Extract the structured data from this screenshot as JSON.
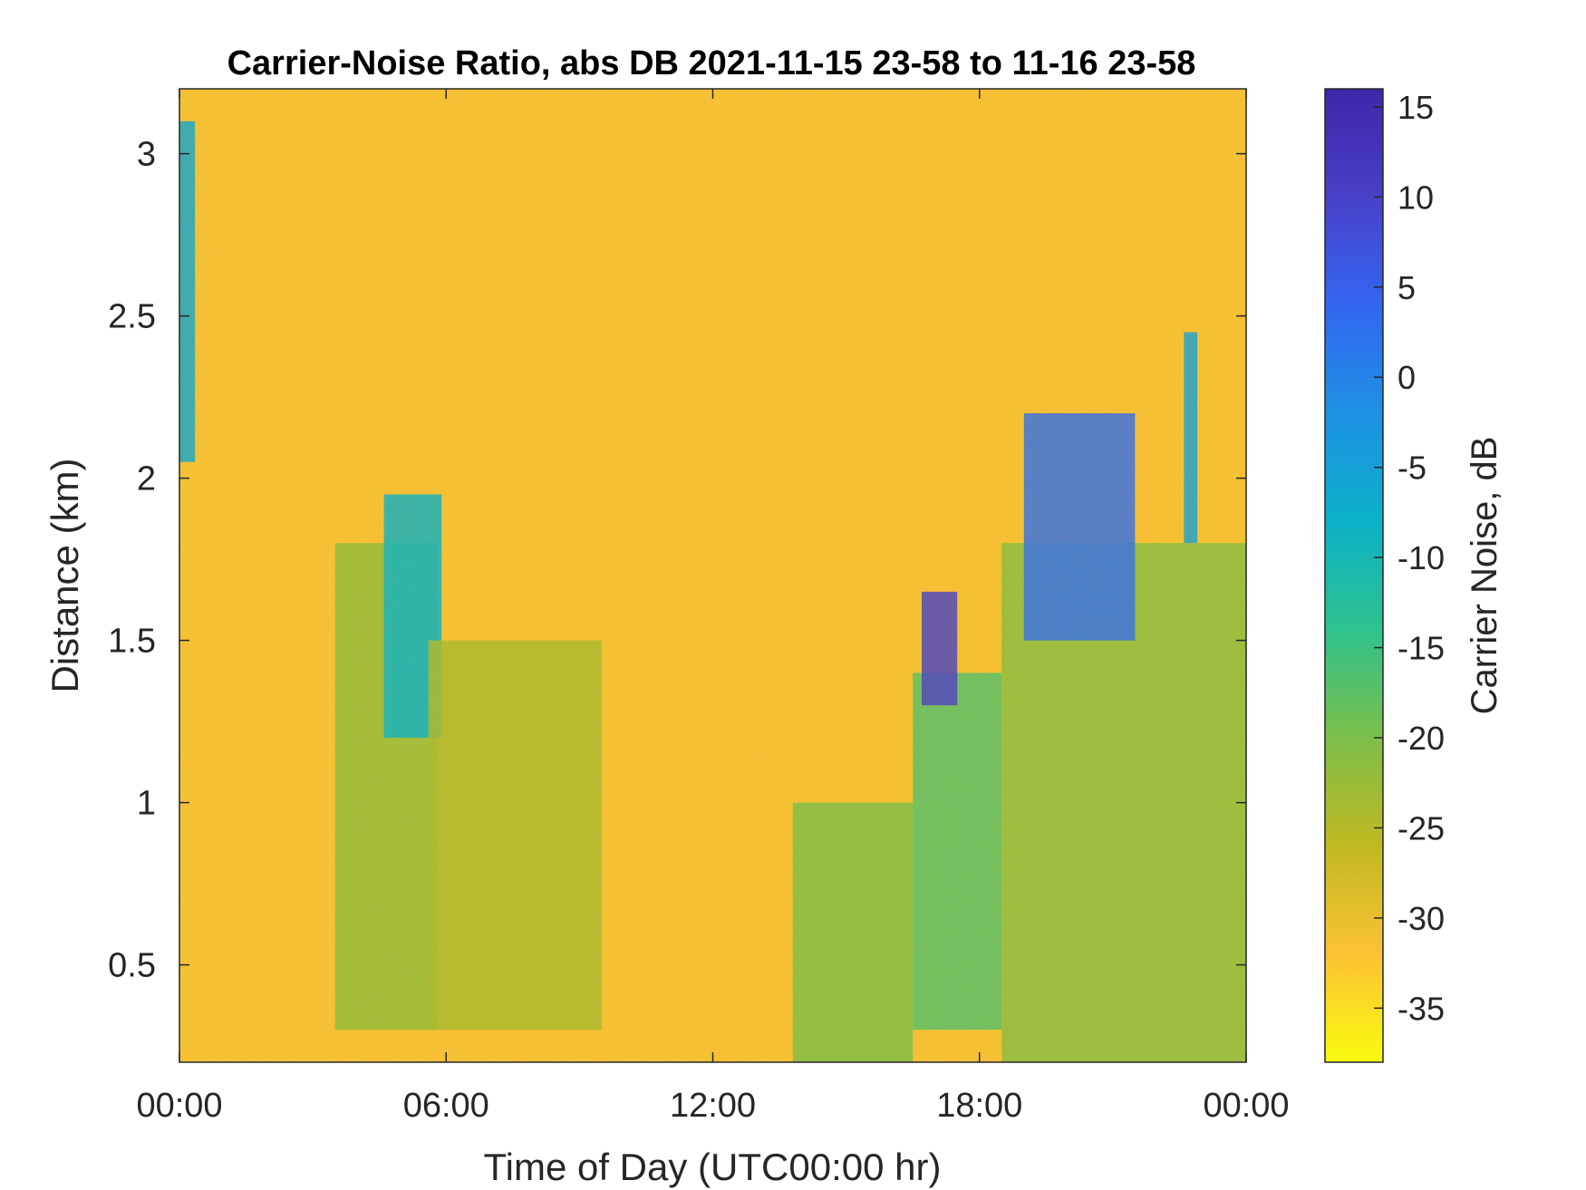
{
  "chart_data": {
    "type": "heatmap",
    "title": "Carrier-Noise Ratio, abs DB 2021-11-15 23-58 to 11-16 23-58",
    "xlabel": "Time of Day (UTC00:00 hr)",
    "ylabel": "Distance (km)",
    "xlim": [
      0,
      24
    ],
    "ylim": [
      0.2,
      3.2
    ],
    "x_ticks": [
      0,
      6,
      12,
      18,
      24
    ],
    "x_tick_labels": [
      "00:00",
      "06:00",
      "12:00",
      "18:00",
      "00:00"
    ],
    "y_ticks": [
      0.5,
      1,
      1.5,
      2,
      2.5,
      3
    ],
    "y_tick_labels": [
      "0.5",
      "1",
      "1.5",
      "2",
      "2.5",
      "3"
    ],
    "colorbar": {
      "label": "Carrier Noise, dB",
      "range": [
        -38,
        16
      ],
      "ticks": [
        15,
        10,
        5,
        0,
        -5,
        -10,
        -15,
        -20,
        -25,
        -30,
        -35
      ],
      "tick_labels": [
        "15",
        "10",
        "5",
        "0",
        "-5",
        "-10",
        "-15",
        "-20",
        "-25",
        "-30",
        "-35"
      ],
      "colormap": "parula",
      "colors": [
        "#f9fb0e",
        "#fbc234",
        "#c1b922",
        "#7cbf49",
        "#2ec28d",
        "#0bb1c8",
        "#1e91e4",
        "#3366f0",
        "#4840c8",
        "#3e26a8"
      ]
    },
    "background_value_db": -31,
    "features": [
      {
        "t_start": 0,
        "t_end": 0.35,
        "d_min": 2.05,
        "d_max": 3.1,
        "value_db": -6
      },
      {
        "t_start": 3.5,
        "t_end": 5.8,
        "d_min": 0.3,
        "d_max": 1.8,
        "value_db": -22
      },
      {
        "t_start": 4.6,
        "t_end": 5.9,
        "d_min": 1.2,
        "d_max": 1.95,
        "value_db": -8
      },
      {
        "t_start": 5.6,
        "t_end": 9.5,
        "d_min": 0.3,
        "d_max": 1.5,
        "value_db": -24
      },
      {
        "t_start": 13.8,
        "t_end": 16.5,
        "d_min": 0.2,
        "d_max": 1.0,
        "value_db": -20
      },
      {
        "t_start": 16.5,
        "t_end": 18.5,
        "d_min": 0.3,
        "d_max": 1.4,
        "value_db": -17
      },
      {
        "t_start": 16.7,
        "t_end": 17.5,
        "d_min": 1.3,
        "d_max": 1.65,
        "value_db": 10
      },
      {
        "t_start": 18.5,
        "t_end": 24,
        "d_min": 0.2,
        "d_max": 1.8,
        "value_db": -21
      },
      {
        "t_start": 19,
        "t_end": 21.5,
        "d_min": 1.5,
        "d_max": 2.2,
        "value_db": 3
      },
      {
        "t_start": 22.6,
        "t_end": 22.9,
        "d_min": 1.8,
        "d_max": 2.45,
        "value_db": -5
      }
    ]
  }
}
